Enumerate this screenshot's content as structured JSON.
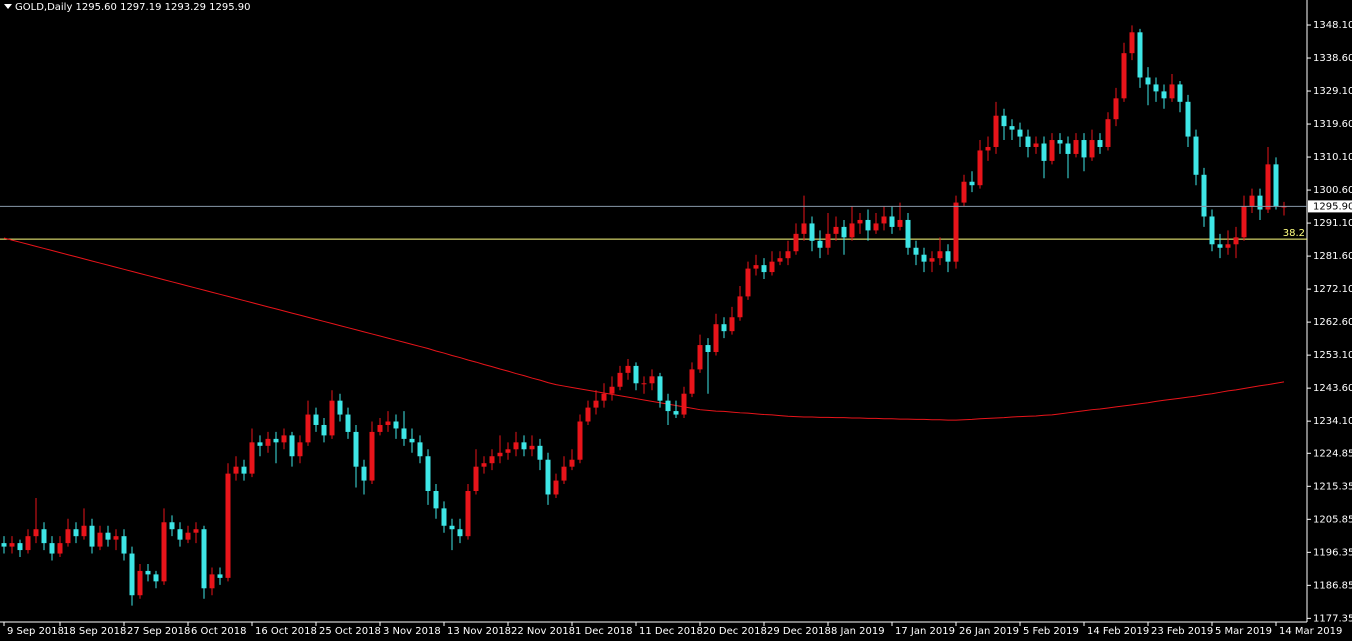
{
  "chart_data": {
    "type": "candlestick",
    "title": "GOLD,Daily  1295.60 1297.19 1293.29 1295.90",
    "up_color": "#e8141a",
    "down_color": "#3ee6e6",
    "categories": [
      "9 Sep 2018",
      null,
      null,
      null,
      null,
      null,
      null,
      "18 Sep 2018",
      null,
      null,
      null,
      null,
      null,
      null,
      null,
      "27 Sep 2018",
      null,
      null,
      null,
      null,
      null,
      null,
      null,
      "6 Oct 2018",
      null,
      null,
      null,
      null,
      null,
      null,
      null,
      "16 Oct 2018",
      null,
      null,
      null,
      null,
      null,
      null,
      null,
      "25 Oct 2018",
      null,
      null,
      null,
      null,
      null,
      null,
      null,
      "3 Nov 2018",
      null,
      null,
      null,
      null,
      null,
      null,
      null,
      "13 Nov 2018",
      null,
      null,
      null,
      null,
      null,
      null,
      null,
      "22 Nov 2018",
      null,
      null,
      null,
      null,
      null,
      null,
      null,
      "1 Dec 2018",
      null,
      null,
      null,
      null,
      null,
      null,
      null,
      "11 Dec 2018",
      null,
      null,
      null,
      null,
      null,
      null,
      null,
      "20 Dec 2018",
      null,
      null,
      null,
      null,
      null,
      null,
      null,
      "29 Dec 2018",
      null,
      null,
      null,
      null,
      null,
      null,
      null,
      "8 Jan 2019",
      null,
      null,
      null,
      null,
      null,
      null,
      null,
      "17 Jan 2019",
      null,
      null,
      null,
      null,
      null,
      null,
      null,
      "26 Jan 2019",
      null,
      null,
      null,
      null,
      null,
      null,
      null,
      "5 Feb 2019",
      null,
      null,
      null,
      null,
      null,
      null,
      null,
      "14 Feb 2019",
      null,
      null,
      null,
      null,
      null,
      null,
      null,
      "23 Feb 2019",
      null,
      null,
      null,
      null,
      null,
      null,
      null,
      "5 Mar 2019",
      null,
      null,
      null,
      null,
      null,
      null,
      null,
      "14 Mar 2019",
      null
    ],
    "candles": [
      [
        1199,
        1201,
        1196,
        1198
      ],
      [
        1198,
        1201,
        1196,
        1199
      ],
      [
        1199,
        1200,
        1195,
        1197
      ],
      [
        1197,
        1203,
        1196,
        1201
      ],
      [
        1201,
        1212,
        1199,
        1203
      ],
      [
        1203,
        1205,
        1197,
        1199
      ],
      [
        1199,
        1201,
        1194,
        1196
      ],
      [
        1196,
        1201,
        1195,
        1199
      ],
      [
        1199,
        1206,
        1198,
        1203
      ],
      [
        1203,
        1205,
        1199,
        1201
      ],
      [
        1201,
        1209,
        1200,
        1204
      ],
      [
        1204,
        1206,
        1196,
        1198
      ],
      [
        1198,
        1204,
        1197,
        1202
      ],
      [
        1202,
        1204,
        1198,
        1200
      ],
      [
        1200,
        1203,
        1197,
        1201
      ],
      [
        1201,
        1203,
        1194,
        1196
      ],
      [
        1196,
        1198,
        1181,
        1184
      ],
      [
        1184,
        1193,
        1183,
        1191
      ],
      [
        1191,
        1193,
        1188,
        1190
      ],
      [
        1190,
        1191,
        1186,
        1188
      ],
      [
        1188,
        1209,
        1187,
        1205
      ],
      [
        1205,
        1207,
        1201,
        1203
      ],
      [
        1203,
        1205,
        1198,
        1200
      ],
      [
        1200,
        1204,
        1199,
        1202
      ],
      [
        1202,
        1205,
        1199,
        1203
      ],
      [
        1203,
        1204,
        1183,
        1186
      ],
      [
        1186,
        1192,
        1184,
        1190
      ],
      [
        1190,
        1192,
        1187,
        1189
      ],
      [
        1189,
        1222,
        1188,
        1219
      ],
      [
        1219,
        1224,
        1217,
        1221
      ],
      [
        1221,
        1223,
        1217,
        1219
      ],
      [
        1219,
        1232,
        1218,
        1228
      ],
      [
        1228,
        1230,
        1224,
        1227
      ],
      [
        1227,
        1231,
        1225,
        1229
      ],
      [
        1229,
        1231,
        1222,
        1228
      ],
      [
        1228,
        1232,
        1226,
        1230
      ],
      [
        1230,
        1231,
        1221,
        1224
      ],
      [
        1224,
        1230,
        1222,
        1228
      ],
      [
        1228,
        1240,
        1227,
        1236
      ],
      [
        1236,
        1238,
        1231,
        1233
      ],
      [
        1233,
        1235,
        1228,
        1230
      ],
      [
        1230,
        1243,
        1229,
        1240
      ],
      [
        1240,
        1242,
        1234,
        1236
      ],
      [
        1236,
        1238,
        1229,
        1231
      ],
      [
        1231,
        1233,
        1215,
        1221
      ],
      [
        1221,
        1223,
        1213,
        1217
      ],
      [
        1217,
        1234,
        1216,
        1231
      ],
      [
        1231,
        1235,
        1230,
        1233
      ],
      [
        1233,
        1237,
        1231,
        1234
      ],
      [
        1234,
        1236,
        1229,
        1232
      ],
      [
        1232,
        1237,
        1227,
        1229
      ],
      [
        1229,
        1232,
        1225,
        1228
      ],
      [
        1228,
        1230,
        1222,
        1224
      ],
      [
        1224,
        1226,
        1210,
        1214
      ],
      [
        1214,
        1216,
        1206,
        1209
      ],
      [
        1209,
        1211,
        1202,
        1204
      ],
      [
        1204,
        1206,
        1197,
        1203
      ],
      [
        1203,
        1206,
        1199,
        1201
      ],
      [
        1201,
        1216,
        1200,
        1214
      ],
      [
        1214,
        1226,
        1213,
        1221
      ],
      [
        1221,
        1224,
        1219,
        1222
      ],
      [
        1222,
        1226,
        1220,
        1224
      ],
      [
        1224,
        1230,
        1222,
        1225
      ],
      [
        1225,
        1228,
        1223,
        1226
      ],
      [
        1226,
        1231,
        1224,
        1228
      ],
      [
        1228,
        1230,
        1224,
        1226
      ],
      [
        1226,
        1230,
        1224,
        1227
      ],
      [
        1227,
        1229,
        1220,
        1223
      ],
      [
        1223,
        1225,
        1210,
        1213
      ],
      [
        1213,
        1219,
        1212,
        1217
      ],
      [
        1217,
        1224,
        1216,
        1221
      ],
      [
        1221,
        1226,
        1220,
        1223
      ],
      [
        1223,
        1236,
        1222,
        1234
      ],
      [
        1234,
        1240,
        1233,
        1238
      ],
      [
        1238,
        1243,
        1236,
        1240
      ],
      [
        1240,
        1245,
        1238,
        1242
      ],
      [
        1242,
        1247,
        1240,
        1244
      ],
      [
        1244,
        1250,
        1243,
        1248
      ],
      [
        1248,
        1252,
        1246,
        1250
      ],
      [
        1250,
        1251,
        1243,
        1245
      ],
      [
        1245,
        1247,
        1242,
        1245
      ],
      [
        1245,
        1249,
        1243,
        1247
      ],
      [
        1247,
        1248,
        1238,
        1240
      ],
      [
        1240,
        1242,
        1233,
        1237
      ],
      [
        1237,
        1240,
        1235,
        1236
      ],
      [
        1236,
        1244,
        1235,
        1242
      ],
      [
        1242,
        1251,
        1241,
        1249
      ],
      [
        1249,
        1259,
        1248,
        1256
      ],
      [
        1256,
        1258,
        1242,
        1254
      ],
      [
        1254,
        1265,
        1253,
        1262
      ],
      [
        1262,
        1264,
        1258,
        1260
      ],
      [
        1260,
        1267,
        1259,
        1264
      ],
      [
        1264,
        1273,
        1263,
        1270
      ],
      [
        1270,
        1280,
        1269,
        1278
      ],
      [
        1278,
        1282,
        1276,
        1279
      ],
      [
        1279,
        1281,
        1275,
        1277
      ],
      [
        1277,
        1283,
        1276,
        1280
      ],
      [
        1280,
        1283,
        1279,
        1281
      ],
      [
        1281,
        1286,
        1279,
        1283
      ],
      [
        1283,
        1291,
        1282,
        1288
      ],
      [
        1288,
        1299,
        1286,
        1291
      ],
      [
        1291,
        1293,
        1283,
        1286
      ],
      [
        1286,
        1289,
        1281,
        1284
      ],
      [
        1284,
        1294,
        1282,
        1288
      ],
      [
        1288,
        1293,
        1286,
        1290
      ],
      [
        1290,
        1292,
        1282,
        1287
      ],
      [
        1287,
        1296,
        1286,
        1291
      ],
      [
        1291,
        1294,
        1288,
        1292
      ],
      [
        1292,
        1295,
        1286,
        1289
      ],
      [
        1289,
        1294,
        1288,
        1291
      ],
      [
        1291,
        1296,
        1289,
        1293
      ],
      [
        1293,
        1296,
        1288,
        1290
      ],
      [
        1290,
        1297,
        1289,
        1292
      ],
      [
        1292,
        1294,
        1282,
        1284
      ],
      [
        1284,
        1286,
        1279,
        1282
      ],
      [
        1282,
        1284,
        1277,
        1280
      ],
      [
        1280,
        1283,
        1277,
        1281
      ],
      [
        1281,
        1287,
        1279,
        1283
      ],
      [
        1283,
        1285,
        1277,
        1280
      ],
      [
        1280,
        1299,
        1278,
        1297
      ],
      [
        1297,
        1305,
        1296,
        1303
      ],
      [
        1303,
        1306,
        1300,
        1302
      ],
      [
        1302,
        1315,
        1301,
        1312
      ],
      [
        1312,
        1316,
        1309,
        1313
      ],
      [
        1313,
        1326,
        1311,
        1322
      ],
      [
        1322,
        1324,
        1315,
        1319
      ],
      [
        1319,
        1321,
        1315,
        1318
      ],
      [
        1318,
        1320,
        1313,
        1316
      ],
      [
        1316,
        1318,
        1310,
        1313
      ],
      [
        1313,
        1316,
        1311,
        1314
      ],
      [
        1314,
        1316,
        1304,
        1309
      ],
      [
        1309,
        1317,
        1308,
        1315
      ],
      [
        1315,
        1317,
        1311,
        1314
      ],
      [
        1314,
        1316,
        1304,
        1311
      ],
      [
        1311,
        1317,
        1310,
        1315
      ],
      [
        1315,
        1317,
        1306,
        1310
      ],
      [
        1310,
        1318,
        1309,
        1315
      ],
      [
        1315,
        1317,
        1311,
        1313
      ],
      [
        1313,
        1323,
        1312,
        1321
      ],
      [
        1321,
        1330,
        1319,
        1327
      ],
      [
        1327,
        1343,
        1326,
        1340
      ],
      [
        1340,
        1348,
        1338,
        1346
      ],
      [
        1346,
        1347,
        1330,
        1333
      ],
      [
        1333,
        1336,
        1325,
        1331
      ],
      [
        1331,
        1333,
        1326,
        1329
      ],
      [
        1329,
        1331,
        1324,
        1327
      ],
      [
        1327,
        1334,
        1326,
        1331
      ],
      [
        1331,
        1332,
        1323,
        1326
      ],
      [
        1326,
        1328,
        1313,
        1316
      ],
      [
        1316,
        1318,
        1302,
        1305
      ],
      [
        1305,
        1307,
        1290,
        1293
      ],
      [
        1293,
        1295,
        1283,
        1285
      ],
      [
        1285,
        1288,
        1281,
        1284
      ],
      [
        1284,
        1289,
        1282,
        1285
      ],
      [
        1285,
        1290,
        1281,
        1287
      ],
      [
        1287,
        1299,
        1286,
        1296
      ],
      [
        1296,
        1301,
        1294,
        1299
      ],
      [
        1299,
        1301,
        1292,
        1295
      ],
      [
        1295,
        1313,
        1294,
        1308
      ],
      [
        1308,
        1310,
        1295,
        1296
      ],
      [
        1295.6,
        1297.19,
        1293.29,
        1295.9
      ]
    ],
    "moving_average": {
      "color": "#e8141a",
      "values": [
        1286.8,
        1286.2,
        1285.6,
        1285.0,
        1284.4,
        1283.8,
        1283.2,
        1282.6,
        1282.0,
        1281.4,
        1280.8,
        1280.2,
        1279.6,
        1279.0,
        1278.4,
        1277.8,
        1277.2,
        1276.6,
        1276.0,
        1275.4,
        1274.8,
        1274.2,
        1273.6,
        1273.0,
        1272.4,
        1271.8,
        1271.2,
        1270.6,
        1270.0,
        1269.4,
        1268.8,
        1268.2,
        1267.6,
        1267.0,
        1266.4,
        1265.8,
        1265.2,
        1264.6,
        1264.0,
        1263.4,
        1262.8,
        1262.2,
        1261.6,
        1261.0,
        1260.4,
        1259.8,
        1259.2,
        1258.6,
        1258.0,
        1257.4,
        1256.8,
        1256.2,
        1255.6,
        1255.0,
        1254.3,
        1253.7,
        1253.0,
        1252.4,
        1251.7,
        1251.1,
        1250.4,
        1249.8,
        1249.1,
        1248.5,
        1247.8,
        1247.2,
        1246.5,
        1245.9,
        1245.2,
        1244.6,
        1244.2,
        1243.8,
        1243.4,
        1243.0,
        1242.6,
        1242.2,
        1241.8,
        1241.4,
        1241.0,
        1240.6,
        1240.2,
        1239.8,
        1239.4,
        1239.0,
        1238.6,
        1238.2,
        1237.8,
        1237.4,
        1237.2,
        1237.0,
        1236.9,
        1236.7,
        1236.5,
        1236.4,
        1236.2,
        1236.0,
        1235.9,
        1235.7,
        1235.5,
        1235.4,
        1235.3,
        1235.3,
        1235.2,
        1235.2,
        1235.1,
        1235.1,
        1235.0,
        1235.0,
        1234.9,
        1234.9,
        1234.8,
        1234.8,
        1234.7,
        1234.7,
        1234.6,
        1234.6,
        1234.5,
        1234.5,
        1234.4,
        1234.4,
        1234.5,
        1234.6,
        1234.8,
        1234.9,
        1235.0,
        1235.1,
        1235.3,
        1235.4,
        1235.5,
        1235.6,
        1235.8,
        1235.9,
        1236.2,
        1236.5,
        1236.8,
        1237.1,
        1237.4,
        1237.6,
        1237.9,
        1238.2,
        1238.5,
        1238.8,
        1239.1,
        1239.4,
        1239.8,
        1240.1,
        1240.4,
        1240.7,
        1241.0,
        1241.3,
        1241.7,
        1242.0,
        1242.4,
        1242.8,
        1243.1,
        1243.5,
        1243.9,
        1244.3,
        1244.6,
        1245.0,
        1245.4
      ]
    },
    "price_line": {
      "value": 1295.9,
      "label": "1295.90",
      "color": "#8899aa"
    },
    "levels": [
      {
        "value": 1286.5,
        "label": "38.2",
        "color": "#ffff80"
      }
    ],
    "ylim": [
      1176.3,
      1355.3
    ],
    "yticks": [
      {
        "value": 1348.1,
        "label": "1348.10"
      },
      {
        "value": 1338.6,
        "label": "1338.60"
      },
      {
        "value": 1329.1,
        "label": "1329.10"
      },
      {
        "value": 1319.6,
        "label": "1319.60"
      },
      {
        "value": 1310.1,
        "label": "1310.10"
      },
      {
        "value": 1300.6,
        "label": "1300.60"
      },
      {
        "value": 1291.1,
        "label": "1291.10"
      },
      {
        "value": 1281.6,
        "label": "1281.60"
      },
      {
        "value": 1272.1,
        "label": "1272.10"
      },
      {
        "value": 1262.6,
        "label": "1262.60"
      },
      {
        "value": 1253.1,
        "label": "1253.10"
      },
      {
        "value": 1243.6,
        "label": "1243.60"
      },
      {
        "value": 1234.1,
        "label": "1234.10"
      },
      1224.85,
      1215.35,
      1205.85,
      1196.35,
      1186.85,
      1177.35
    ]
  }
}
